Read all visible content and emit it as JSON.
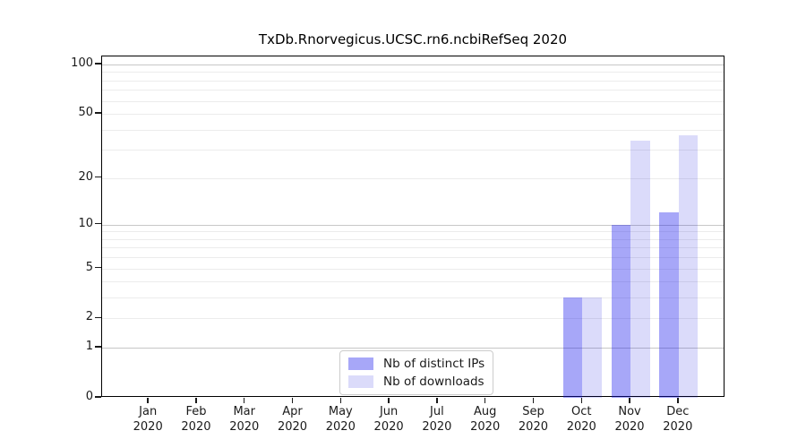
{
  "chart_data": {
    "type": "bar",
    "title": "TxDb.Rnorvegicus.UCSC.rn6.ncbiRefSeq 2020",
    "categories": [
      "Jan 2020",
      "Feb 2020",
      "Mar 2020",
      "Apr 2020",
      "May 2020",
      "Jun 2020",
      "Jul 2020",
      "Aug 2020",
      "Sep 2020",
      "Oct 2020",
      "Nov 2020",
      "Dec 2020"
    ],
    "series": [
      {
        "name": "Nb of distinct IPs",
        "color": "#1111EB5E",
        "values": [
          null,
          null,
          null,
          null,
          null,
          null,
          null,
          null,
          null,
          3,
          10,
          12
        ]
      },
      {
        "name": "Nb of downloads",
        "color": "#0F0FDE26",
        "values": [
          null,
          null,
          null,
          null,
          null,
          null,
          null,
          null,
          null,
          3,
          34,
          37
        ]
      }
    ],
    "yscale": "log1p",
    "ylim": [
      0,
      112
    ],
    "xlim": [
      -0.97,
      11.97
    ],
    "bar_width": 0.4,
    "yticks": [
      100,
      50,
      20,
      10,
      5,
      2,
      1,
      0
    ],
    "gridlines": {
      "minor": [
        2,
        3,
        4,
        5,
        6,
        7,
        8,
        9,
        20,
        30,
        40,
        50,
        60,
        70,
        80,
        90
      ],
      "major": [
        1,
        10,
        100
      ]
    },
    "grid_minor_color": "#ececec",
    "grid_major_color": "#c7c7c7",
    "axis_color": "#000000",
    "text_color": "#1a1a1a",
    "legend_position": "lower center",
    "grid": "on"
  }
}
